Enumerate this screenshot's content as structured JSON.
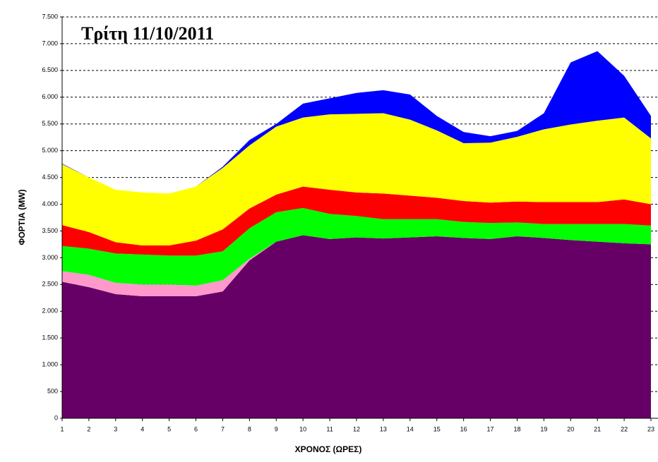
{
  "chart_data": {
    "type": "stacked-area",
    "annotation": "Τρίτη 11/10/2011",
    "x_label": "ΧΡΟΝΟΣ (ΩΡΕΣ)",
    "y_label": "ΦΟΡΤΙΑ (MW)",
    "categories": [
      "1",
      "2",
      "3",
      "4",
      "5",
      "6",
      "7",
      "8",
      "9",
      "10",
      "11",
      "12",
      "13",
      "14",
      "15",
      "16",
      "17",
      "18",
      "19",
      "20",
      "21",
      "22",
      "23"
    ],
    "series": [
      {
        "color": "#660066",
        "values": [
          2550,
          2450,
          2320,
          2280,
          2280,
          2280,
          2370,
          2950,
          3300,
          3420,
          3350,
          3380,
          3360,
          3380,
          3400,
          3370,
          3350,
          3400,
          3370,
          3330,
          3300,
          3270,
          3250
        ]
      },
      {
        "color": "#ff99cc",
        "values": [
          200,
          230,
          210,
          220,
          220,
          200,
          210,
          30,
          0,
          0,
          0,
          0,
          0,
          0,
          0,
          0,
          0,
          0,
          0,
          0,
          0,
          0,
          0
        ]
      },
      {
        "color": "#00ff00",
        "values": [
          470,
          490,
          550,
          560,
          540,
          560,
          540,
          570,
          550,
          510,
          470,
          400,
          360,
          340,
          320,
          300,
          300,
          260,
          260,
          300,
          330,
          360,
          350
        ]
      },
      {
        "color": "#ff0000",
        "values": [
          390,
          310,
          210,
          170,
          190,
          280,
          410,
          370,
          330,
          400,
          450,
          440,
          480,
          440,
          400,
          390,
          380,
          390,
          410,
          410,
          410,
          460,
          400
        ]
      },
      {
        "color": "#ffff00",
        "values": [
          1140,
          1020,
          980,
          990,
          970,
          1010,
          1150,
          1180,
          1270,
          1290,
          1410,
          1470,
          1500,
          1420,
          1260,
          1080,
          1120,
          1210,
          1360,
          1450,
          1520,
          1530,
          1230
        ]
      },
      {
        "color": "#0000ff",
        "values": [
          10,
          0,
          0,
          0,
          0,
          0,
          20,
          100,
          50,
          260,
          300,
          390,
          430,
          470,
          270,
          210,
          120,
          110,
          300,
          1160,
          1300,
          780,
          420
        ]
      }
    ],
    "ylim": [
      0,
      7500
    ],
    "yticks": [
      0,
      500,
      {
        "value": 1000,
        "label": "1.000"
      },
      {
        "value": 1500,
        "label": "1.500"
      },
      {
        "value": 2000,
        "label": "2.000"
      },
      {
        "value": 2500,
        "label": "2.500"
      },
      {
        "value": 3000,
        "label": "3.000"
      },
      {
        "value": 3500,
        "label": "3.500"
      },
      {
        "value": 4000,
        "label": "4.000"
      },
      {
        "value": 4500,
        "label": "4.500"
      },
      {
        "value": 5000,
        "label": "5.000"
      },
      {
        "value": 5500,
        "label": "5.500"
      },
      {
        "value": 6000,
        "label": "6.000"
      },
      {
        "value": 6500,
        "label": "6.500"
      },
      {
        "value": 7000,
        "label": "7.000"
      },
      {
        "value": 7500,
        "label": "7.500"
      }
    ],
    "grid": true
  }
}
